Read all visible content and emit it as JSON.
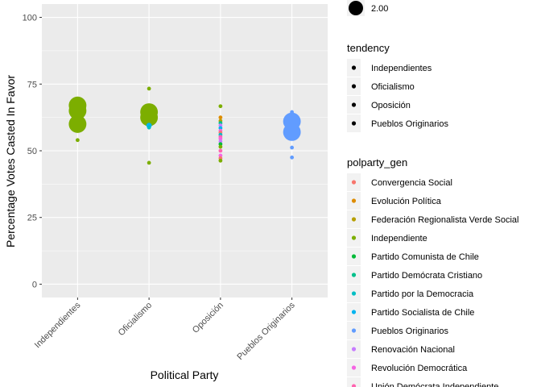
{
  "chart_data": {
    "type": "scatter",
    "xlabel": "Political Party",
    "ylabel": "Percentage Votes Casted In Favor",
    "categories": [
      "Independientes",
      "Oficialismo",
      "Oposición",
      "Pueblos Originarios"
    ],
    "ylim": [
      -5,
      105
    ],
    "yticks": [
      0,
      25,
      50,
      75,
      100
    ],
    "grid": true,
    "legend_position": "right",
    "size_legend": {
      "visible_label": "2.00"
    },
    "tendency_legend": {
      "title": "tendency",
      "labels": [
        "Independientes",
        "Oficialismo",
        "Oposición",
        "Pueblos Originarios"
      ]
    },
    "party_legend": {
      "title": "polparty_gen",
      "entries": [
        {
          "label": "Convergencia Social",
          "color": "#F8766D"
        },
        {
          "label": "Evolución Política",
          "color": "#DE8C00"
        },
        {
          "label": "Federación Regionalista Verde Social",
          "color": "#B79F00"
        },
        {
          "label": "Independiente",
          "color": "#7CAE00"
        },
        {
          "label": "Partido Comunista de Chile",
          "color": "#00BA38"
        },
        {
          "label": "Partido Demócrata Cristiano",
          "color": "#00C08B"
        },
        {
          "label": "Partido por la Democracia",
          "color": "#00BFC4"
        },
        {
          "label": "Partido Socialista de Chile",
          "color": "#00B4F0"
        },
        {
          "label": "Pueblos Originarios",
          "color": "#619CFF"
        },
        {
          "label": "Renovación Nacional",
          "color": "#C77CFF"
        },
        {
          "label": "Revolución Democrática",
          "color": "#F564E3"
        },
        {
          "label": "Unión Demócrata Independiente",
          "color": "#FF64B0"
        }
      ]
    },
    "points": [
      {
        "x": "Independientes",
        "y": 67,
        "size": 10,
        "party": "Independiente"
      },
      {
        "x": "Independientes",
        "y": 68,
        "size": 3,
        "party": "Independiente"
      },
      {
        "x": "Independientes",
        "y": 65,
        "size": 10,
        "party": "Independiente"
      },
      {
        "x": "Independientes",
        "y": 63,
        "size": 6,
        "party": "Independiente"
      },
      {
        "x": "Independientes",
        "y": 60,
        "size": 10,
        "party": "Independiente"
      },
      {
        "x": "Independientes",
        "y": 54,
        "size": 1,
        "party": "Independiente"
      },
      {
        "x": "Oficialismo",
        "y": 73.3,
        "size": 1,
        "party": "Independiente"
      },
      {
        "x": "Oficialismo",
        "y": 64.5,
        "size": 10,
        "party": "Independiente"
      },
      {
        "x": "Oficialismo",
        "y": 63.5,
        "size": 6,
        "party": "Federación Regionalista Verde Social"
      },
      {
        "x": "Oficialismo",
        "y": 62.5,
        "size": 10,
        "party": "Independiente"
      },
      {
        "x": "Oficialismo",
        "y": 61.5,
        "size": 4,
        "party": "Independiente"
      },
      {
        "x": "Oficialismo",
        "y": 59.5,
        "size": 2,
        "party": "Partido Socialista de Chile"
      },
      {
        "x": "Oficialismo",
        "y": 58.7,
        "size": 1,
        "party": "Partido por la Democracia"
      },
      {
        "x": "Oficialismo",
        "y": 45.5,
        "size": 1,
        "party": "Independiente"
      },
      {
        "x": "Oposición",
        "y": 66.7,
        "size": 1,
        "party": "Independiente"
      },
      {
        "x": "Oposición",
        "y": 62.5,
        "size": 1,
        "party": "Evolución Política"
      },
      {
        "x": "Oposición",
        "y": 61.2,
        "size": 1,
        "party": "Federación Regionalista Verde Social"
      },
      {
        "x": "Oposición",
        "y": 60.4,
        "size": 1,
        "party": "Partido Demócrata Cristiano"
      },
      {
        "x": "Oposición",
        "y": 59.5,
        "size": 1,
        "party": "Renovación Nacional"
      },
      {
        "x": "Oposición",
        "y": 58.5,
        "size": 1,
        "party": "Partido Socialista de Chile"
      },
      {
        "x": "Oposición",
        "y": 57.5,
        "size": 1,
        "party": "Revolución Democrática"
      },
      {
        "x": "Oposición",
        "y": 56.8,
        "size": 1,
        "party": "Convergencia Social"
      },
      {
        "x": "Oposición",
        "y": 56.0,
        "size": 1,
        "party": "Partido por la Democracia"
      },
      {
        "x": "Oposición",
        "y": 55.2,
        "size": 1,
        "party": "Unión Demócrata Independiente"
      },
      {
        "x": "Oposición",
        "y": 54.5,
        "size": 1,
        "party": "Revolución Democrática"
      },
      {
        "x": "Oposición",
        "y": 53.5,
        "size": 1,
        "party": "Renovación Nacional"
      },
      {
        "x": "Oposición",
        "y": 52.5,
        "size": 1,
        "party": "Partido Comunista de Chile"
      },
      {
        "x": "Oposición",
        "y": 51.5,
        "size": 1,
        "party": "Independiente"
      },
      {
        "x": "Oposición",
        "y": 50.0,
        "size": 1,
        "party": "Unión Demócrata Independiente"
      },
      {
        "x": "Oposición",
        "y": 48.2,
        "size": 1,
        "party": "Revolución Democrática"
      },
      {
        "x": "Oposición",
        "y": 47.2,
        "size": 1,
        "party": "Convergencia Social"
      },
      {
        "x": "Oposición",
        "y": 46.3,
        "size": 1,
        "party": "Independiente"
      },
      {
        "x": "Pueblos Originarios",
        "y": 64.5,
        "size": 1,
        "party": "Pueblos Originarios"
      },
      {
        "x": "Pueblos Originarios",
        "y": 61,
        "size": 10,
        "party": "Pueblos Originarios"
      },
      {
        "x": "Pueblos Originarios",
        "y": 57,
        "size": 10,
        "party": "Pueblos Originarios"
      },
      {
        "x": "Pueblos Originarios",
        "y": 51.2,
        "size": 1,
        "party": "Pueblos Originarios"
      },
      {
        "x": "Pueblos Originarios",
        "y": 47.5,
        "size": 1,
        "party": "Pueblos Originarios"
      }
    ]
  }
}
